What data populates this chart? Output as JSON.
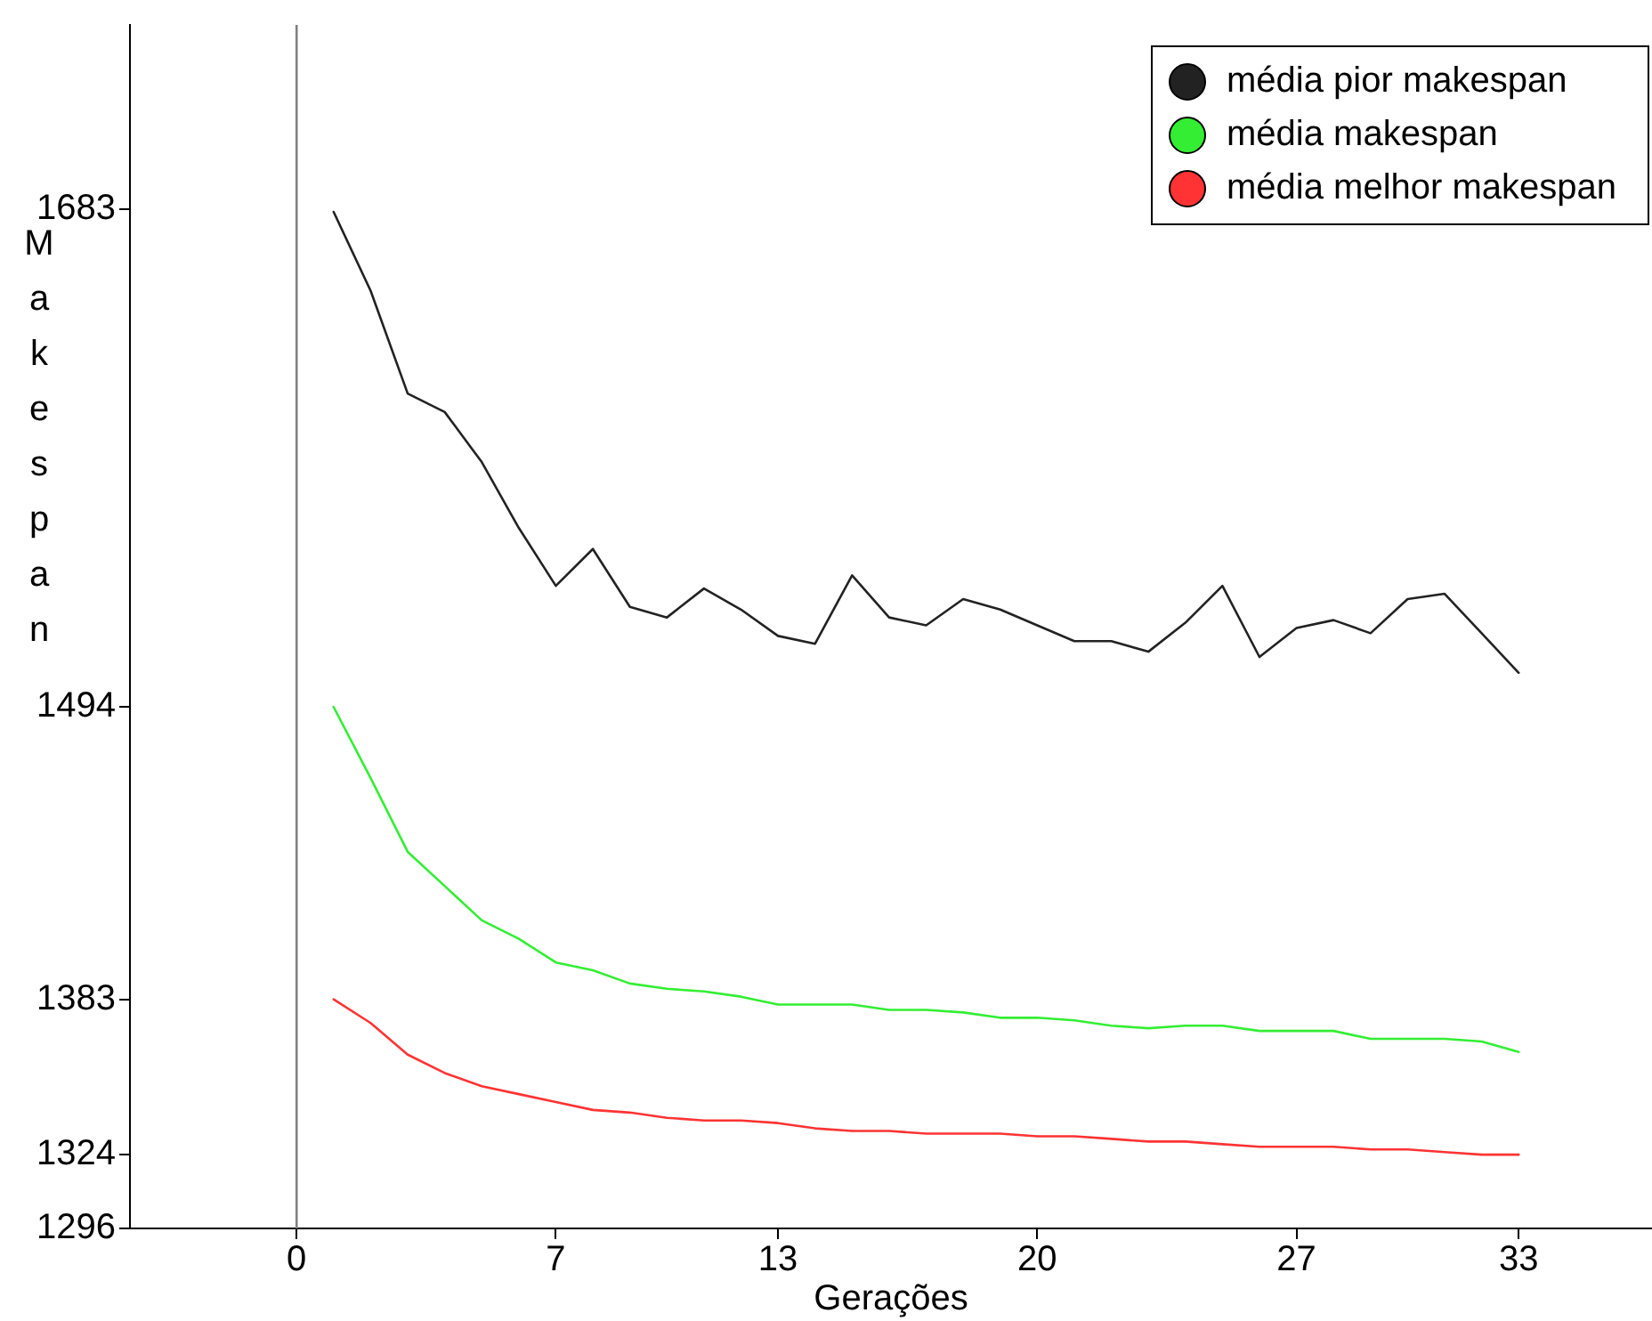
{
  "chart_data": {
    "type": "line",
    "xlabel": "Gerações",
    "ylabel": "Makespan",
    "x": [
      1,
      2,
      3,
      4,
      5,
      6,
      7,
      8,
      9,
      10,
      11,
      12,
      13,
      14,
      15,
      16,
      17,
      18,
      19,
      20,
      21,
      22,
      23,
      24,
      25,
      26,
      27,
      28,
      29,
      30,
      31,
      32,
      33
    ],
    "series": [
      {
        "name": "média pior makespan",
        "color": "#222222",
        "values": [
          1682,
          1652,
          1613,
          1606,
          1587,
          1562,
          1540,
          1554,
          1532,
          1528,
          1539,
          1531,
          1521,
          1518,
          1544,
          1528,
          1525,
          1535,
          1531,
          1525,
          1519,
          1519,
          1515,
          1526,
          1540,
          1513,
          1524,
          1527,
          1522,
          1535,
          1537,
          1522,
          1507
        ]
      },
      {
        "name": "média makespan",
        "color": "#33ee33",
        "values": [
          1494,
          1467,
          1439,
          1426,
          1413,
          1406,
          1397,
          1394,
          1389,
          1387,
          1386,
          1384,
          1381,
          1381,
          1381,
          1379,
          1379,
          1378,
          1376,
          1376,
          1375,
          1373,
          1372,
          1373,
          1373,
          1371,
          1371,
          1371,
          1368,
          1368,
          1368,
          1367,
          1363
        ]
      },
      {
        "name": "média melhor makespan",
        "color": "#ff3333",
        "values": [
          1383,
          1374,
          1362,
          1355,
          1350,
          1347,
          1344,
          1341,
          1340,
          1338,
          1337,
          1337,
          1336,
          1334,
          1333,
          1333,
          1332,
          1332,
          1332,
          1331,
          1331,
          1330,
          1329,
          1329,
          1328,
          1327,
          1327,
          1327,
          1326,
          1326,
          1325,
          1324,
          1324
        ]
      }
    ],
    "xlim": [
      -4.5,
      36.6
    ],
    "xticks": [
      0,
      7,
      13,
      20,
      27,
      33
    ],
    "ylim": [
      1296,
      1753
    ],
    "yticks": [
      1296,
      1324,
      1383,
      1494,
      1683
    ],
    "ref_lines": [
      {
        "axis": "x",
        "value": 0,
        "color": "#808080"
      }
    ],
    "grid": false,
    "legend": "top right",
    "line_style": "solid"
  }
}
